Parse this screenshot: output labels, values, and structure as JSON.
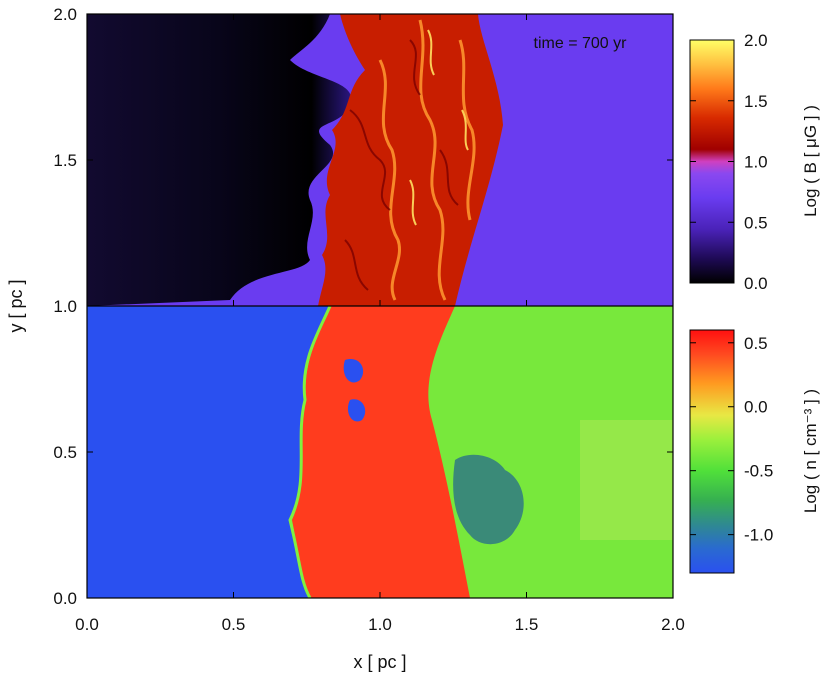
{
  "chart_data": {
    "type": "heatmap",
    "xlabel": "x [ pc ]",
    "ylabel": "y [ pc ]",
    "xlim": [
      0.0,
      2.0
    ],
    "ylim": [
      0.0,
      2.0
    ],
    "x_ticks": [
      "0.0",
      "0.5",
      "1.0",
      "1.5",
      "2.0"
    ],
    "y_ticks": [
      "0.0",
      "0.5",
      "1.0",
      "1.5",
      "2.0"
    ],
    "annotation": "time = 700 yr",
    "panels": [
      {
        "y_range": [
          1.0,
          2.0
        ],
        "quantity": "magnetic field strength (log)",
        "colorbar_label": "Log ( B [ μG ] )",
        "colorbar_range": [
          0.0,
          2.0
        ],
        "colorbar_ticks": [
          "0.0",
          "0.5",
          "1.0",
          "1.5",
          "2.0"
        ],
        "colormap": [
          "#000000",
          "#1e0a55",
          "#5b2bd6",
          "#7c4dff",
          "#c838c8",
          "#b20000",
          "#e03000",
          "#ff7a1a",
          "#ffc040",
          "#ffff66"
        ],
        "background_value": 0.4,
        "shocked_region_value": 1.2,
        "unshocked_region_value_right": 0.4,
        "dark_cavity_value": 0.0
      },
      {
        "y_range": [
          0.0,
          1.0
        ],
        "quantity": "number density (log)",
        "colorbar_label": "Log ( n [ cm⁻³ ] )",
        "colorbar_range": [
          -1.3,
          0.6
        ],
        "colorbar_ticks": [
          "-1.0",
          "-0.5",
          "0.0",
          "0.5"
        ],
        "colormap": [
          "#2a50f0",
          "#2a7ab0",
          "#2fa06a",
          "#44d63c",
          "#7cf03c",
          "#e8e844",
          "#ff9020",
          "#ff3a20",
          "#ff1010"
        ],
        "left_background_value": -1.2,
        "shocked_region_value": 0.35,
        "right_background_value": -0.25,
        "low_density_patch_value": -0.95
      }
    ]
  }
}
